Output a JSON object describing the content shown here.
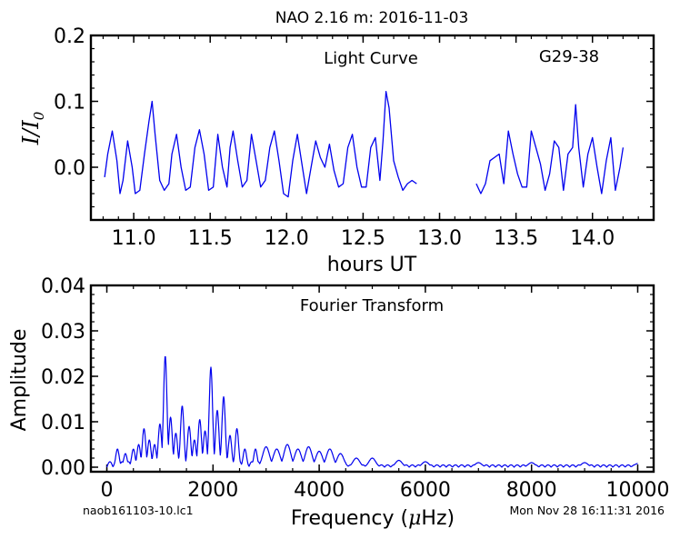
{
  "title": "NAO 2.16 m:  2016-11-03",
  "footer": {
    "filename": "naob161103-10.lc1",
    "timestamp": "Mon Nov 28 16:11:31 2016"
  },
  "chart_data": [
    {
      "type": "line",
      "title": "Light Curve",
      "object_label": "G29-38",
      "xlabel": "hours UT",
      "ylabel_main": "I/I",
      "ylabel_sub": "0",
      "xlim": [
        10.72,
        14.4
      ],
      "ylim": [
        -0.08,
        0.2
      ],
      "xticks": [
        11.0,
        11.5,
        12.0,
        12.5,
        13.0,
        13.5,
        14.0
      ],
      "xtick_labels": [
        "11.0",
        "11.5",
        "12.0",
        "12.5",
        "13.0",
        "13.5",
        "14.0"
      ],
      "yticks": [
        0.0,
        0.1,
        0.2
      ],
      "ytick_labels": [
        "0.0",
        "0.1",
        "0.2"
      ],
      "color": "#0000ee",
      "segments": [
        {
          "x": [
            10.81,
            10.83,
            10.86,
            10.89,
            10.91,
            10.93,
            10.96,
            10.99,
            11.01,
            11.04,
            11.07,
            11.1,
            11.12,
            11.14,
            11.17,
            11.2,
            11.23,
            11.25,
            11.28,
            11.31,
            11.34,
            11.37,
            11.4,
            11.43,
            11.46,
            11.49,
            11.52,
            11.55,
            11.58,
            11.61,
            11.63,
            11.65,
            11.68,
            11.71,
            11.74,
            11.77,
            11.8,
            11.83,
            11.86,
            11.89,
            11.92,
            11.95,
            11.98,
            12.01,
            12.04,
            12.07,
            12.1,
            12.13,
            12.16,
            12.19,
            12.22,
            12.25,
            12.28,
            12.31,
            12.34,
            12.37,
            12.4,
            12.43,
            12.46,
            12.49,
            12.52,
            12.55,
            12.58,
            12.61,
            12.63,
            12.65,
            12.67,
            12.7,
            12.73,
            12.76,
            12.79,
            12.82,
            12.85
          ],
          "y": [
            -0.015,
            0.02,
            0.055,
            0.01,
            -0.04,
            -0.02,
            0.04,
            0.0,
            -0.04,
            -0.035,
            0.02,
            0.07,
            0.1,
            0.05,
            -0.02,
            -0.035,
            -0.025,
            0.02,
            0.05,
            0.0,
            -0.035,
            -0.03,
            0.03,
            0.057,
            0.02,
            -0.035,
            -0.03,
            0.05,
            0.0,
            -0.03,
            0.03,
            0.055,
            0.01,
            -0.03,
            -0.02,
            0.05,
            0.01,
            -0.03,
            -0.02,
            0.03,
            0.055,
            0.01,
            -0.04,
            -0.045,
            0.01,
            0.05,
            0.005,
            -0.04,
            0.0,
            0.04,
            0.015,
            0.0,
            0.035,
            -0.005,
            -0.03,
            -0.025,
            0.03,
            0.05,
            0.0,
            -0.03,
            -0.03,
            0.03,
            0.045,
            -0.02,
            0.04,
            0.115,
            0.09,
            0.01,
            -0.015,
            -0.035,
            -0.025,
            -0.02,
            -0.025
          ]
        },
        {
          "x": [
            13.24,
            13.27,
            13.3,
            13.33,
            13.36,
            13.39,
            13.42,
            13.45,
            13.48,
            13.51,
            13.54,
            13.57,
            13.6,
            13.63,
            13.66,
            13.69,
            13.72,
            13.75,
            13.78,
            13.81,
            13.84,
            13.87,
            13.89,
            13.91,
            13.94,
            13.97,
            14.0,
            14.03,
            14.06,
            14.09,
            14.12,
            14.15,
            14.18,
            14.2
          ],
          "y": [
            -0.025,
            -0.04,
            -0.025,
            0.01,
            0.015,
            0.02,
            -0.025,
            0.055,
            0.02,
            -0.01,
            -0.03,
            -0.03,
            0.055,
            0.03,
            0.005,
            -0.035,
            -0.01,
            0.04,
            0.03,
            -0.035,
            0.02,
            0.03,
            0.095,
            0.03,
            -0.03,
            0.02,
            0.045,
            0.0,
            -0.04,
            0.01,
            0.045,
            -0.035,
            0.0,
            0.03
          ]
        }
      ]
    },
    {
      "type": "line",
      "title": "Fourier Transform",
      "xlabel_pre": "Frequency (",
      "xlabel_mu": "μ",
      "xlabel_post": "Hz)",
      "ylabel": "Amplitude",
      "xlim": [
        -300,
        10300
      ],
      "ylim": [
        -0.001,
        0.04
      ],
      "xticks": [
        0,
        2000,
        4000,
        6000,
        8000,
        10000
      ],
      "xtick_labels": [
        "0",
        "2000",
        "4000",
        "6000",
        "8000",
        "10000"
      ],
      "yticks": [
        0.0,
        0.01,
        0.02,
        0.03,
        0.04
      ],
      "ytick_labels": [
        "0.00",
        "0.01",
        "0.02",
        "0.03",
        "0.04"
      ],
      "color": "#0000ee",
      "peaks": [
        {
          "x": 200,
          "y": 0.004
        },
        {
          "x": 350,
          "y": 0.003
        },
        {
          "x": 500,
          "y": 0.004
        },
        {
          "x": 600,
          "y": 0.005
        },
        {
          "x": 700,
          "y": 0.0085
        },
        {
          "x": 800,
          "y": 0.006
        },
        {
          "x": 900,
          "y": 0.005
        },
        {
          "x": 1000,
          "y": 0.0095
        },
        {
          "x": 1100,
          "y": 0.0245
        },
        {
          "x": 1200,
          "y": 0.011
        },
        {
          "x": 1300,
          "y": 0.0075
        },
        {
          "x": 1420,
          "y": 0.0135
        },
        {
          "x": 1550,
          "y": 0.009
        },
        {
          "x": 1650,
          "y": 0.006
        },
        {
          "x": 1750,
          "y": 0.0105
        },
        {
          "x": 1850,
          "y": 0.008
        },
        {
          "x": 1960,
          "y": 0.022
        },
        {
          "x": 2080,
          "y": 0.0125
        },
        {
          "x": 2200,
          "y": 0.0155
        },
        {
          "x": 2320,
          "y": 0.007
        },
        {
          "x": 2450,
          "y": 0.0085
        },
        {
          "x": 2600,
          "y": 0.004
        },
        {
          "x": 2800,
          "y": 0.004
        },
        {
          "x": 3000,
          "y": 0.0045
        },
        {
          "x": 3200,
          "y": 0.004
        },
        {
          "x": 3400,
          "y": 0.005
        },
        {
          "x": 3600,
          "y": 0.004
        },
        {
          "x": 3800,
          "y": 0.0045
        },
        {
          "x": 4000,
          "y": 0.0035
        },
        {
          "x": 4200,
          "y": 0.004
        },
        {
          "x": 4400,
          "y": 0.003
        },
        {
          "x": 4700,
          "y": 0.002
        },
        {
          "x": 5000,
          "y": 0.002
        },
        {
          "x": 5500,
          "y": 0.0015
        },
        {
          "x": 6000,
          "y": 0.0012
        },
        {
          "x": 7000,
          "y": 0.001
        },
        {
          "x": 8000,
          "y": 0.001
        },
        {
          "x": 9000,
          "y": 0.001
        },
        {
          "x": 10000,
          "y": 0.0008
        }
      ]
    }
  ]
}
